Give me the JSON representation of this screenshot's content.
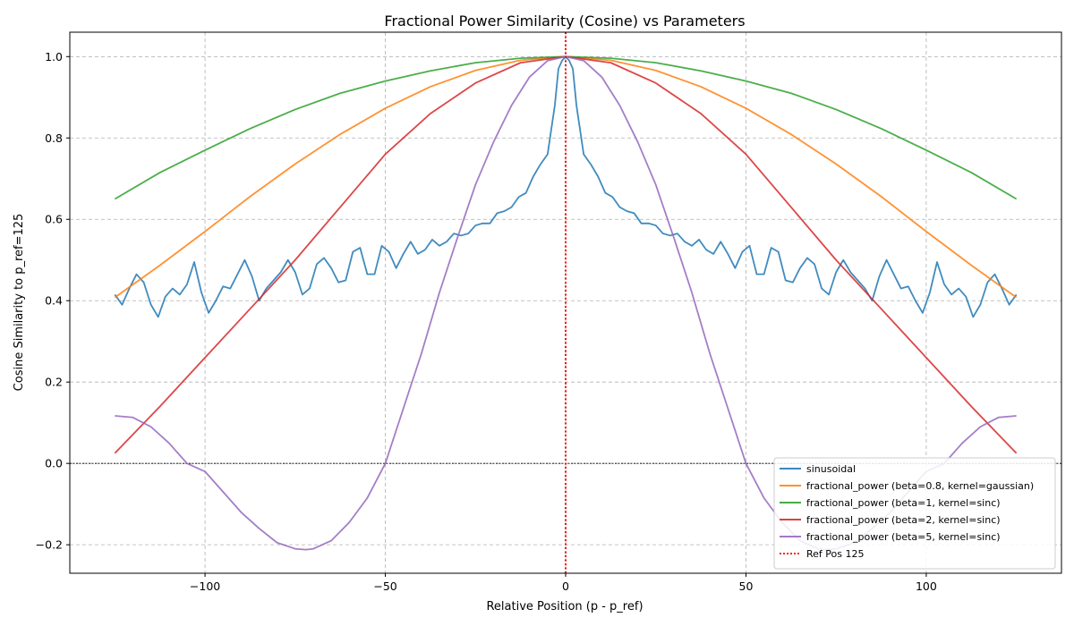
{
  "chart_data": {
    "type": "line",
    "title": "Fractional Power Similarity (Cosine) vs Parameters",
    "xlabel": "Relative Position (p - p_ref)",
    "ylabel": "Cosine Similarity to p_ref=125",
    "xlim": [
      -137.5,
      137.5
    ],
    "ylim": [
      -0.27,
      1.06
    ],
    "xticks": [
      -100,
      -50,
      0,
      50,
      100
    ],
    "yticks": [
      -0.2,
      0.0,
      0.2,
      0.4,
      0.6,
      0.8,
      1.0
    ],
    "xtick_labels": [
      "−100",
      "−50",
      "0",
      "50",
      "100"
    ],
    "ytick_labels": [
      "−0.2",
      "0.0",
      "0.2",
      "0.4",
      "0.6",
      "0.8",
      "1.0"
    ],
    "grid": true,
    "legend_position": "lower-right",
    "zero_line": 0.0,
    "series": [
      {
        "name": "sinusoidal",
        "color": "#1f77b4",
        "x": [
          -125,
          -123,
          -121,
          -119,
          -117,
          -115,
          -113,
          -111,
          -109,
          -107,
          -105,
          -103,
          -101,
          -99,
          -97,
          -95,
          -93,
          -91,
          -89,
          -87,
          -85,
          -83,
          -81,
          -79,
          -77,
          -75,
          -73,
          -71,
          -69,
          -67,
          -65,
          -63,
          -61,
          -59,
          -57,
          -55,
          -53,
          -51,
          -49,
          -47,
          -45,
          -43,
          -41,
          -39,
          -37,
          -35,
          -33,
          -31,
          -29,
          -27,
          -25,
          -23,
          -21,
          -19,
          -17,
          -15,
          -13,
          -11,
          -9,
          -7,
          -5,
          -4,
          -3,
          -2,
          -1,
          0,
          1,
          2,
          3,
          4,
          5,
          7,
          9,
          11,
          13,
          15,
          17,
          19,
          21,
          23,
          25,
          27,
          29,
          31,
          33,
          35,
          37,
          39,
          41,
          43,
          45,
          47,
          49,
          51,
          53,
          55,
          57,
          59,
          61,
          63,
          65,
          67,
          69,
          71,
          73,
          75,
          77,
          79,
          81,
          83,
          85,
          87,
          89,
          91,
          93,
          95,
          97,
          99,
          101,
          103,
          105,
          107,
          109,
          111,
          113,
          115,
          117,
          119,
          121,
          123,
          125
        ],
        "values": [
          0.415,
          0.39,
          0.43,
          0.465,
          0.445,
          0.39,
          0.36,
          0.41,
          0.43,
          0.415,
          0.44,
          0.495,
          0.42,
          0.37,
          0.4,
          0.435,
          0.43,
          0.465,
          0.5,
          0.46,
          0.4,
          0.43,
          0.45,
          0.47,
          0.5,
          0.47,
          0.415,
          0.43,
          0.49,
          0.505,
          0.48,
          0.445,
          0.45,
          0.52,
          0.53,
          0.465,
          0.465,
          0.535,
          0.52,
          0.48,
          0.515,
          0.545,
          0.515,
          0.525,
          0.55,
          0.535,
          0.545,
          0.565,
          0.56,
          0.565,
          0.585,
          0.59,
          0.59,
          0.615,
          0.62,
          0.63,
          0.655,
          0.665,
          0.705,
          0.735,
          0.76,
          0.82,
          0.88,
          0.97,
          0.99,
          1.0,
          0.99,
          0.97,
          0.88,
          0.82,
          0.76,
          0.735,
          0.705,
          0.665,
          0.655,
          0.63,
          0.62,
          0.615,
          0.59,
          0.59,
          0.585,
          0.565,
          0.56,
          0.565,
          0.545,
          0.535,
          0.55,
          0.525,
          0.515,
          0.545,
          0.515,
          0.48,
          0.52,
          0.535,
          0.465,
          0.465,
          0.53,
          0.52,
          0.45,
          0.445,
          0.48,
          0.505,
          0.49,
          0.43,
          0.415,
          0.47,
          0.5,
          0.47,
          0.45,
          0.43,
          0.4,
          0.46,
          0.5,
          0.465,
          0.43,
          0.435,
          0.4,
          0.37,
          0.42,
          0.495,
          0.44,
          0.415,
          0.43,
          0.41,
          0.36,
          0.39,
          0.445,
          0.465,
          0.43,
          0.39,
          0.415
        ]
      },
      {
        "name": "fractional_power (beta=0.8, kernel=gaussian)",
        "color": "#ff7f0e",
        "x": [
          -125,
          -112.5,
          -100,
          -87.5,
          -75,
          -62.5,
          -50,
          -37.5,
          -25,
          -12.5,
          0,
          12.5,
          25,
          37.5,
          50,
          62.5,
          75,
          87.5,
          100,
          112.5,
          125
        ],
        "values": [
          0.408,
          0.487,
          0.57,
          0.656,
          0.736,
          0.809,
          0.873,
          0.926,
          0.966,
          0.991,
          1.0,
          0.991,
          0.966,
          0.926,
          0.873,
          0.809,
          0.736,
          0.656,
          0.57,
          0.487,
          0.408
        ]
      },
      {
        "name": "fractional_power (beta=1, kernel=sinc)",
        "color": "#2ca02c",
        "x": [
          -125,
          -112.5,
          -100,
          -87.5,
          -75,
          -62.5,
          -50,
          -37.5,
          -25,
          -12.5,
          0,
          12.5,
          25,
          37.5,
          50,
          62.5,
          75,
          87.5,
          100,
          112.5,
          125
        ],
        "values": [
          0.65,
          0.715,
          0.77,
          0.823,
          0.87,
          0.91,
          0.94,
          0.965,
          0.985,
          0.996,
          1.0,
          0.996,
          0.985,
          0.965,
          0.94,
          0.91,
          0.87,
          0.823,
          0.77,
          0.715,
          0.65
        ]
      },
      {
        "name": "fractional_power (beta=2, kernel=sinc)",
        "color": "#d62728",
        "x": [
          -125,
          -112.5,
          -100,
          -87.5,
          -75,
          -62.5,
          -50,
          -37.5,
          -25,
          -12.5,
          0,
          12.5,
          25,
          37.5,
          50,
          62.5,
          75,
          87.5,
          100,
          112.5,
          125
        ],
        "values": [
          0.025,
          0.14,
          0.26,
          0.38,
          0.5,
          0.63,
          0.76,
          0.86,
          0.935,
          0.985,
          1.0,
          0.985,
          0.935,
          0.86,
          0.76,
          0.63,
          0.5,
          0.38,
          0.26,
          0.14,
          0.025
        ]
      },
      {
        "name": "fractional_power (beta=5, kernel=sinc)",
        "color": "#9467bd",
        "x": [
          -125,
          -120,
          -115,
          -110,
          -105,
          -100,
          -95,
          -90,
          -85,
          -80,
          -75,
          -72,
          -70,
          -65,
          -60,
          -55,
          -50,
          -45,
          -40,
          -35,
          -30,
          -25,
          -20,
          -15,
          -10,
          -5,
          0,
          5,
          10,
          15,
          20,
          25,
          30,
          35,
          40,
          45,
          50,
          55,
          60,
          65,
          70,
          72,
          75,
          80,
          85,
          90,
          95,
          100,
          105,
          110,
          115,
          120,
          125
        ],
        "values": [
          0.117,
          0.113,
          0.09,
          0.05,
          0.0,
          -0.02,
          -0.07,
          -0.12,
          -0.16,
          -0.195,
          -0.21,
          -0.212,
          -0.21,
          -0.19,
          -0.145,
          -0.085,
          0.0,
          0.135,
          0.27,
          0.42,
          0.555,
          0.685,
          0.79,
          0.88,
          0.95,
          0.99,
          1.0,
          0.99,
          0.95,
          0.88,
          0.79,
          0.685,
          0.555,
          0.42,
          0.27,
          0.135,
          0.0,
          -0.085,
          -0.145,
          -0.19,
          -0.21,
          -0.212,
          -0.21,
          -0.195,
          -0.16,
          -0.12,
          -0.07,
          -0.02,
          0.0,
          0.05,
          0.09,
          0.113,
          0.117
        ]
      }
    ],
    "reference_line": {
      "name": "Ref Pos 125",
      "x": 0,
      "color": "#ff0000",
      "style": "dotted"
    }
  }
}
